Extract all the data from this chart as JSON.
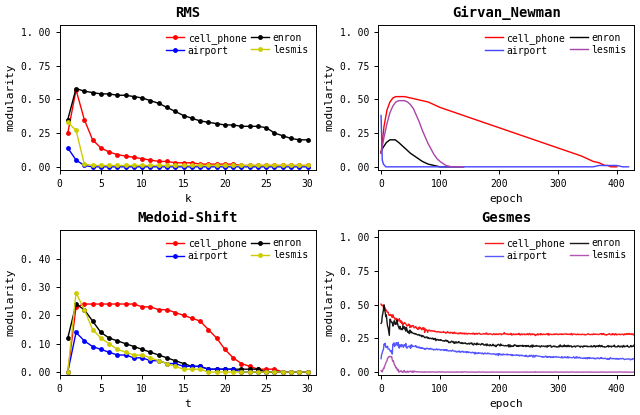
{
  "rms": {
    "title": "RMS",
    "xlabel": "k",
    "ylabel": "modularity",
    "xlim": [
      0,
      31
    ],
    "ylim": [
      -0.02,
      1.05
    ],
    "yticks": [
      0.0,
      0.25,
      0.5,
      0.75,
      1.0
    ],
    "xticks": [
      0,
      5,
      10,
      15,
      20,
      25,
      30
    ],
    "series": {
      "cell_phone": {
        "color": "#ff0000",
        "marker": "o",
        "x": [
          1,
          2,
          3,
          4,
          5,
          6,
          7,
          8,
          9,
          10,
          11,
          12,
          13,
          14,
          15,
          16,
          17,
          18,
          19,
          20,
          21,
          22,
          23,
          24,
          25,
          26,
          27,
          28,
          29,
          30
        ],
        "y": [
          0.25,
          0.57,
          0.35,
          0.2,
          0.14,
          0.11,
          0.09,
          0.08,
          0.07,
          0.06,
          0.05,
          0.04,
          0.04,
          0.03,
          0.03,
          0.03,
          0.02,
          0.02,
          0.02,
          0.02,
          0.02,
          0.01,
          0.01,
          0.01,
          0.01,
          0.01,
          0.01,
          0.01,
          0.01,
          0.01
        ]
      },
      "enron": {
        "color": "#000000",
        "marker": "o",
        "x": [
          1,
          2,
          3,
          4,
          5,
          6,
          7,
          8,
          9,
          10,
          11,
          12,
          13,
          14,
          15,
          16,
          17,
          18,
          19,
          20,
          21,
          22,
          23,
          24,
          25,
          26,
          27,
          28,
          29,
          30
        ],
        "y": [
          0.35,
          0.58,
          0.56,
          0.55,
          0.54,
          0.54,
          0.53,
          0.53,
          0.52,
          0.51,
          0.49,
          0.47,
          0.44,
          0.41,
          0.38,
          0.36,
          0.34,
          0.33,
          0.32,
          0.31,
          0.31,
          0.3,
          0.3,
          0.3,
          0.29,
          0.25,
          0.23,
          0.21,
          0.2,
          0.2
        ]
      },
      "airport": {
        "color": "#0000ff",
        "marker": "o",
        "x": [
          1,
          2,
          3,
          4,
          5,
          6,
          7,
          8,
          9,
          10,
          11,
          12,
          13,
          14,
          15,
          16,
          17,
          18,
          19,
          20,
          21,
          22,
          23,
          24,
          25,
          26,
          27,
          28,
          29,
          30
        ],
        "y": [
          0.14,
          0.05,
          0.01,
          0.0,
          0.0,
          0.0,
          0.0,
          0.0,
          0.0,
          0.0,
          0.0,
          0.0,
          0.0,
          0.0,
          0.0,
          0.0,
          0.0,
          0.0,
          0.0,
          0.0,
          0.0,
          0.0,
          0.0,
          0.0,
          0.0,
          0.0,
          0.0,
          0.0,
          0.0,
          0.0
        ]
      },
      "lesmis": {
        "color": "#cccc00",
        "marker": "o",
        "x": [
          1,
          2,
          3,
          4,
          5,
          6,
          7,
          8,
          9,
          10,
          11,
          12,
          13,
          14,
          15,
          16,
          17,
          18,
          19,
          20,
          21,
          22,
          23,
          24,
          25,
          26,
          27,
          28,
          29,
          30
        ],
        "y": [
          0.33,
          0.27,
          0.02,
          0.01,
          0.01,
          0.01,
          0.01,
          0.01,
          0.01,
          0.01,
          0.01,
          0.01,
          0.01,
          0.01,
          0.01,
          0.01,
          0.01,
          0.01,
          0.01,
          0.01,
          0.01,
          0.01,
          0.01,
          0.01,
          0.01,
          0.01,
          0.01,
          0.01,
          0.01,
          0.01
        ]
      }
    }
  },
  "girvan_newman": {
    "title": "Girvan_Newman",
    "xlabel": "epoch",
    "ylabel": "modularity",
    "xlim": [
      -5,
      430
    ],
    "ylim": [
      -0.02,
      1.05
    ],
    "yticks": [
      0.0,
      0.25,
      0.5,
      0.75,
      1.0
    ],
    "xticks": [
      0,
      100,
      200,
      300,
      400
    ],
    "series": {
      "cell_phone": {
        "color": "#ff0000",
        "x": [
          0,
          5,
          10,
          15,
          20,
          25,
          30,
          35,
          40,
          50,
          60,
          70,
          80,
          90,
          100,
          120,
          140,
          160,
          180,
          200,
          220,
          240,
          260,
          280,
          300,
          320,
          340,
          360,
          370,
          375,
          380,
          385,
          390,
          395,
          400
        ],
        "y": [
          0.1,
          0.3,
          0.42,
          0.48,
          0.51,
          0.52,
          0.52,
          0.52,
          0.52,
          0.51,
          0.5,
          0.49,
          0.48,
          0.46,
          0.44,
          0.41,
          0.38,
          0.35,
          0.32,
          0.29,
          0.26,
          0.23,
          0.2,
          0.17,
          0.14,
          0.11,
          0.08,
          0.04,
          0.03,
          0.02,
          0.01,
          0.01,
          0.0,
          0.0,
          0.0
        ]
      },
      "enron": {
        "color": "#000000",
        "x": [
          0,
          3,
          6,
          9,
          12,
          15,
          18,
          21,
          24,
          27,
          30,
          35,
          40,
          50,
          60,
          70,
          80,
          90,
          100,
          110,
          120,
          130,
          140
        ],
        "y": [
          0.11,
          0.14,
          0.16,
          0.18,
          0.19,
          0.2,
          0.2,
          0.2,
          0.2,
          0.19,
          0.18,
          0.16,
          0.14,
          0.1,
          0.07,
          0.04,
          0.02,
          0.01,
          0.0,
          0.0,
          0.0,
          0.0,
          0.0
        ]
      },
      "airport": {
        "color": "#4444ff",
        "x": [
          0,
          2,
          4,
          6,
          8,
          10,
          350,
          360,
          370,
          380,
          390,
          400,
          410,
          420
        ],
        "y": [
          0.38,
          0.05,
          0.02,
          0.01,
          0.0,
          0.0,
          0.0,
          0.0,
          0.01,
          0.01,
          0.01,
          0.01,
          0.0,
          0.0
        ]
      },
      "lesmis": {
        "color": "#aa44aa",
        "x": [
          0,
          5,
          10,
          15,
          20,
          25,
          30,
          35,
          40,
          45,
          50,
          55,
          60,
          65,
          70,
          75,
          80,
          85,
          90,
          95,
          100,
          110,
          120,
          130,
          140
        ],
        "y": [
          0.1,
          0.22,
          0.32,
          0.4,
          0.45,
          0.48,
          0.49,
          0.49,
          0.49,
          0.48,
          0.46,
          0.43,
          0.38,
          0.33,
          0.27,
          0.22,
          0.17,
          0.13,
          0.09,
          0.06,
          0.04,
          0.01,
          0.0,
          0.0,
          0.0
        ]
      }
    }
  },
  "medoid_shift": {
    "title": "Medoid-Shift",
    "xlabel": "t",
    "ylabel": "modularity",
    "xlim": [
      0,
      31
    ],
    "ylim": [
      -0.01,
      0.5
    ],
    "yticks": [
      0.0,
      0.1,
      0.2,
      0.3,
      0.4
    ],
    "xticks": [
      0,
      5,
      10,
      15,
      20,
      25,
      30
    ],
    "series": {
      "cell_phone": {
        "color": "#ff0000",
        "marker": "o",
        "x": [
          1,
          2,
          3,
          4,
          5,
          6,
          7,
          8,
          9,
          10,
          11,
          12,
          13,
          14,
          15,
          16,
          17,
          18,
          19,
          20,
          21,
          22,
          23,
          24,
          25,
          26,
          27,
          28,
          29,
          30
        ],
        "y": [
          0.0,
          0.23,
          0.24,
          0.24,
          0.24,
          0.24,
          0.24,
          0.24,
          0.24,
          0.23,
          0.23,
          0.22,
          0.22,
          0.21,
          0.2,
          0.19,
          0.18,
          0.15,
          0.12,
          0.08,
          0.05,
          0.03,
          0.02,
          0.01,
          0.01,
          0.01,
          0.0,
          0.0,
          0.0,
          0.0
        ]
      },
      "enron": {
        "color": "#000000",
        "marker": "o",
        "x": [
          1,
          2,
          3,
          4,
          5,
          6,
          7,
          8,
          9,
          10,
          11,
          12,
          13,
          14,
          15,
          16,
          17,
          18,
          19,
          20,
          21,
          22,
          23,
          24,
          25,
          26,
          27,
          28,
          29,
          30
        ],
        "y": [
          0.12,
          0.24,
          0.22,
          0.18,
          0.14,
          0.12,
          0.11,
          0.1,
          0.09,
          0.08,
          0.07,
          0.06,
          0.05,
          0.04,
          0.03,
          0.02,
          0.02,
          0.01,
          0.01,
          0.01,
          0.01,
          0.01,
          0.01,
          0.01,
          0.0,
          0.0,
          0.0,
          0.0,
          0.0,
          0.0
        ]
      },
      "airport": {
        "color": "#0000ff",
        "marker": "o",
        "x": [
          1,
          2,
          3,
          4,
          5,
          6,
          7,
          8,
          9,
          10,
          11,
          12,
          13,
          14,
          15,
          16,
          17,
          18,
          19,
          20,
          21,
          22,
          23,
          24,
          25,
          26,
          27,
          28,
          29,
          30
        ],
        "y": [
          0.0,
          0.14,
          0.11,
          0.09,
          0.08,
          0.07,
          0.06,
          0.06,
          0.05,
          0.05,
          0.04,
          0.04,
          0.03,
          0.03,
          0.02,
          0.02,
          0.02,
          0.01,
          0.01,
          0.01,
          0.01,
          0.0,
          0.0,
          0.0,
          0.0,
          0.0,
          0.0,
          0.0,
          0.0,
          0.0
        ]
      },
      "lesmis": {
        "color": "#cccc00",
        "marker": "o",
        "x": [
          1,
          2,
          3,
          4,
          5,
          6,
          7,
          8,
          9,
          10,
          11,
          12,
          13,
          14,
          15,
          16,
          17,
          18,
          19,
          20,
          21,
          22,
          23,
          24,
          25,
          26,
          27,
          28,
          29,
          30
        ],
        "y": [
          0.0,
          0.28,
          0.22,
          0.15,
          0.12,
          0.1,
          0.08,
          0.07,
          0.06,
          0.06,
          0.05,
          0.04,
          0.03,
          0.02,
          0.01,
          0.01,
          0.01,
          0.0,
          0.0,
          0.0,
          0.0,
          0.0,
          0.0,
          0.0,
          0.0,
          0.0,
          0.0,
          0.0,
          0.0,
          0.0
        ]
      }
    }
  },
  "gesmes": {
    "title": "Gesmes",
    "xlabel": "epoch",
    "ylabel": "modularity",
    "xlim": [
      -5,
      430
    ],
    "ylim": [
      -0.02,
      1.05
    ],
    "yticks": [
      0.0,
      0.25,
      0.5,
      0.75,
      1.0
    ],
    "xticks": [
      0,
      100,
      200,
      300,
      400
    ],
    "cell_phone_dense": true,
    "series": {
      "cell_phone": {
        "color": "#ff0000"
      },
      "enron": {
        "color": "#000000"
      },
      "airport": {
        "color": "#4444ff"
      },
      "lesmis": {
        "color": "#aa44aa"
      }
    }
  },
  "font_family": "monospace",
  "title_fontsize": 10,
  "label_fontsize": 8,
  "tick_fontsize": 7,
  "legend_fontsize": 7,
  "marker_size": 3.5,
  "line_width": 1.0
}
